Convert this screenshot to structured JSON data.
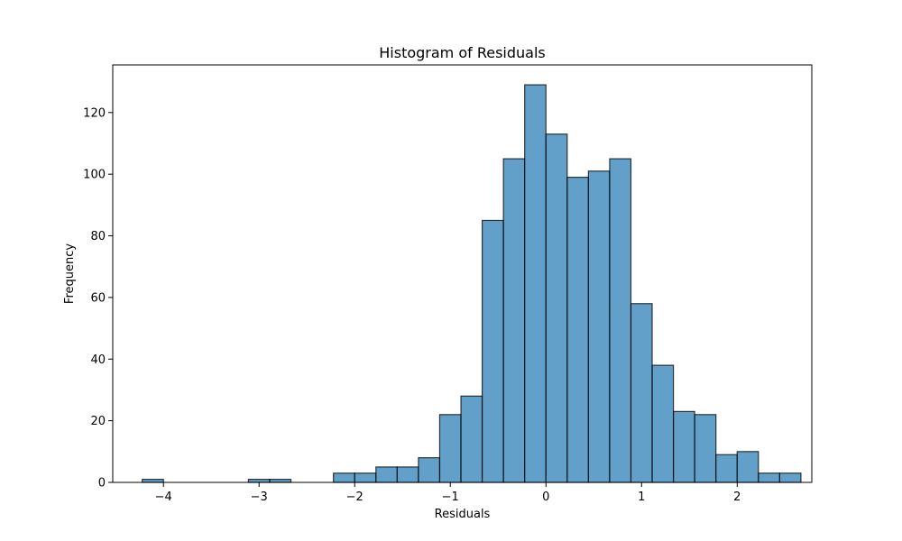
{
  "chart_data": {
    "type": "bar",
    "title": "Histogram of Residuals",
    "xlabel": "Residuals",
    "ylabel": "Frequency",
    "xlim": [
      -4.53,
      2.78
    ],
    "ylim": [
      0,
      135.45
    ],
    "bin_start": -4.222,
    "bin_width": 0.2222,
    "values": [
      1,
      0,
      0,
      0,
      0,
      1,
      1,
      0,
      0,
      3,
      3,
      5,
      5,
      8,
      22,
      28,
      85,
      105,
      129,
      113,
      99,
      101,
      105,
      58,
      38,
      23,
      22,
      9,
      10,
      3,
      3
    ],
    "xticks": [
      -4,
      -3,
      -2,
      -1,
      0,
      1,
      2
    ],
    "xtick_labels": [
      "−4",
      "−3",
      "−2",
      "−1",
      "0",
      "1",
      "2"
    ],
    "yticks": [
      0,
      20,
      40,
      60,
      80,
      100,
      120
    ],
    "ytick_labels": [
      "0",
      "20",
      "40",
      "60",
      "80",
      "100",
      "120"
    ],
    "bar_color": "#1f77b4",
    "bar_alpha": 0.7,
    "edge_color": "#000000",
    "grid": false
  }
}
